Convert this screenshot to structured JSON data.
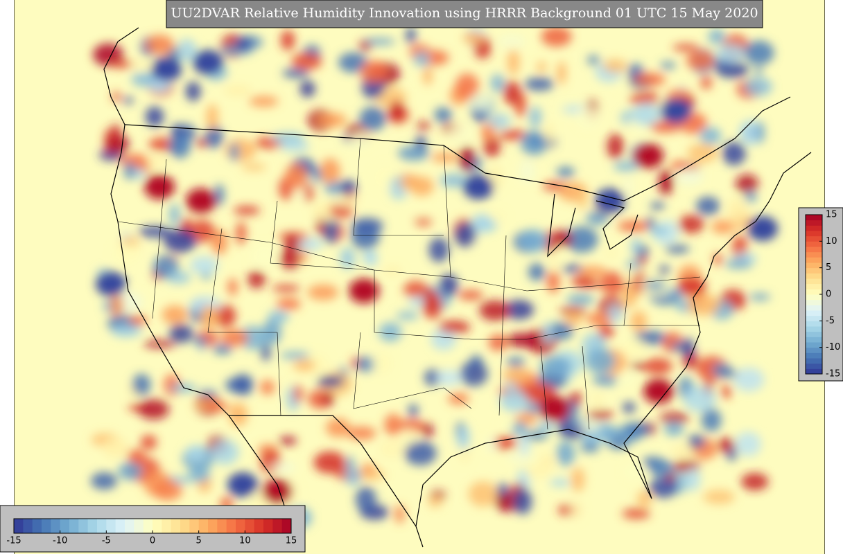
{
  "title": "UU2DVAR Relative Humidity Innovation using HRRR Background 01 UTC 15 May 2020",
  "colorbar_horizontal": {
    "ticks": [
      -15,
      -10,
      -5,
      0,
      5,
      10,
      15
    ]
  },
  "colorbar_vertical": {
    "ticks": [
      15,
      10,
      5,
      0,
      -5,
      -10,
      -15
    ]
  }
}
